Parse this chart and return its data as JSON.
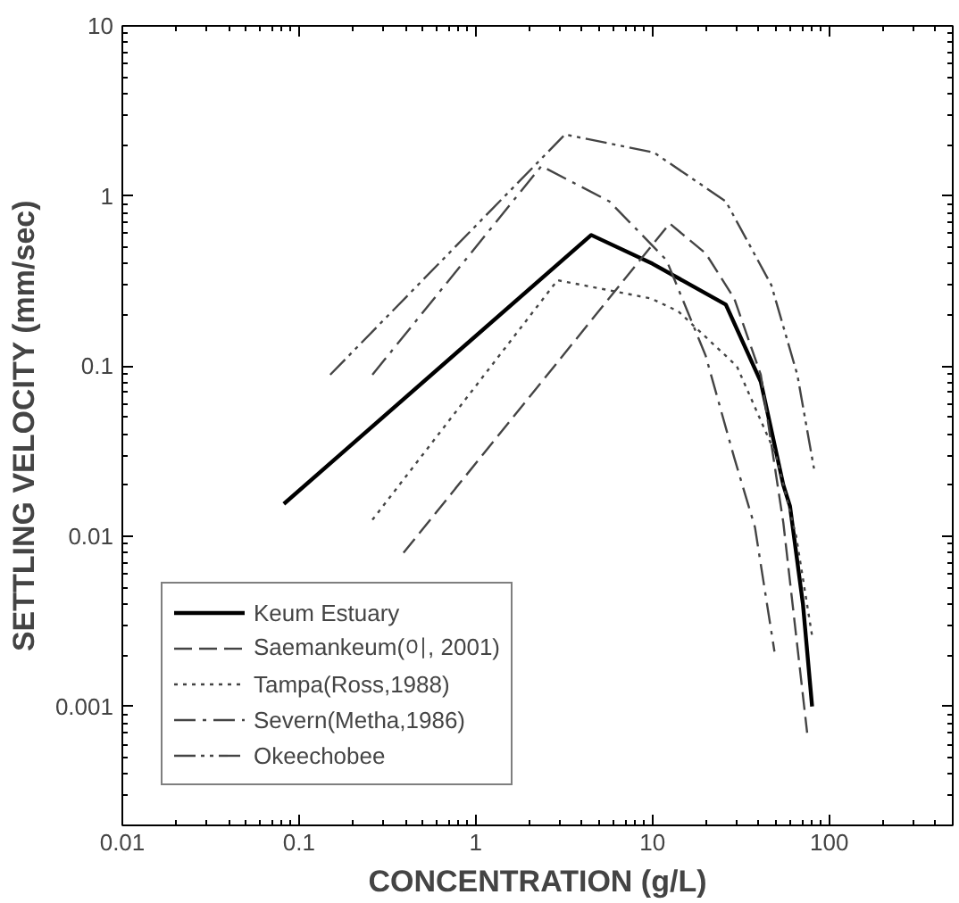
{
  "chart_data": {
    "type": "line",
    "xlabel": "CONCENTRATION (g/L)",
    "ylabel": "SETTLING VELOCITY (mm/sec)",
    "log": "xy",
    "xlim": [
      0.01,
      500
    ],
    "ylim": [
      0.0002,
      10
    ],
    "xticks": [
      0.01,
      0.1,
      1,
      10,
      100
    ],
    "yticks": [
      0.001,
      0.01,
      0.1,
      1,
      10
    ],
    "grid": false,
    "legend": "bottom left",
    "marker": "none",
    "series": [
      {
        "name": "Keum Estuary",
        "color": "#000000",
        "line_style": "solid",
        "x": [
          0.082,
          4.5,
          10,
          26,
          41,
          55,
          60,
          71,
          80
        ],
        "values": [
          0.0155,
          0.59,
          0.4,
          0.23,
          0.081,
          0.02,
          0.015,
          0.004,
          0.001
        ]
      },
      {
        "name": "Saemankeum(이, 2001)",
        "color": "#444444",
        "line_style": "dashed",
        "x": [
          0.39,
          12.5,
          20,
          29,
          41,
          55,
          75
        ],
        "values": [
          0.008,
          0.69,
          0.46,
          0.25,
          0.089,
          0.012,
          0.0007
        ]
      },
      {
        "name": "Tampa(Ross,1988)",
        "color": "#444444",
        "line_style": "dotted",
        "x": [
          0.26,
          2.9,
          9.8,
          14,
          30,
          50,
          65,
          80
        ],
        "values": [
          0.0125,
          0.32,
          0.25,
          0.21,
          0.1,
          0.03,
          0.01,
          0.0026
        ]
      },
      {
        "name": "Severn(Metha,1986)",
        "color": "#444444",
        "line_style": "dashdot",
        "x": [
          0.26,
          2.35,
          5.7,
          12,
          20,
          29,
          38,
          49
        ],
        "values": [
          0.089,
          1.5,
          0.93,
          0.42,
          0.115,
          0.029,
          0.0113,
          0.0021
        ]
      },
      {
        "name": "Okeechobee",
        "color": "#444444",
        "line_style": "dashdotdot",
        "x": [
          0.15,
          3.2,
          10.2,
          26,
          47,
          66,
          82
        ],
        "values": [
          0.089,
          2.3,
          1.8,
          0.93,
          0.3,
          0.089,
          0.025
        ]
      }
    ]
  }
}
